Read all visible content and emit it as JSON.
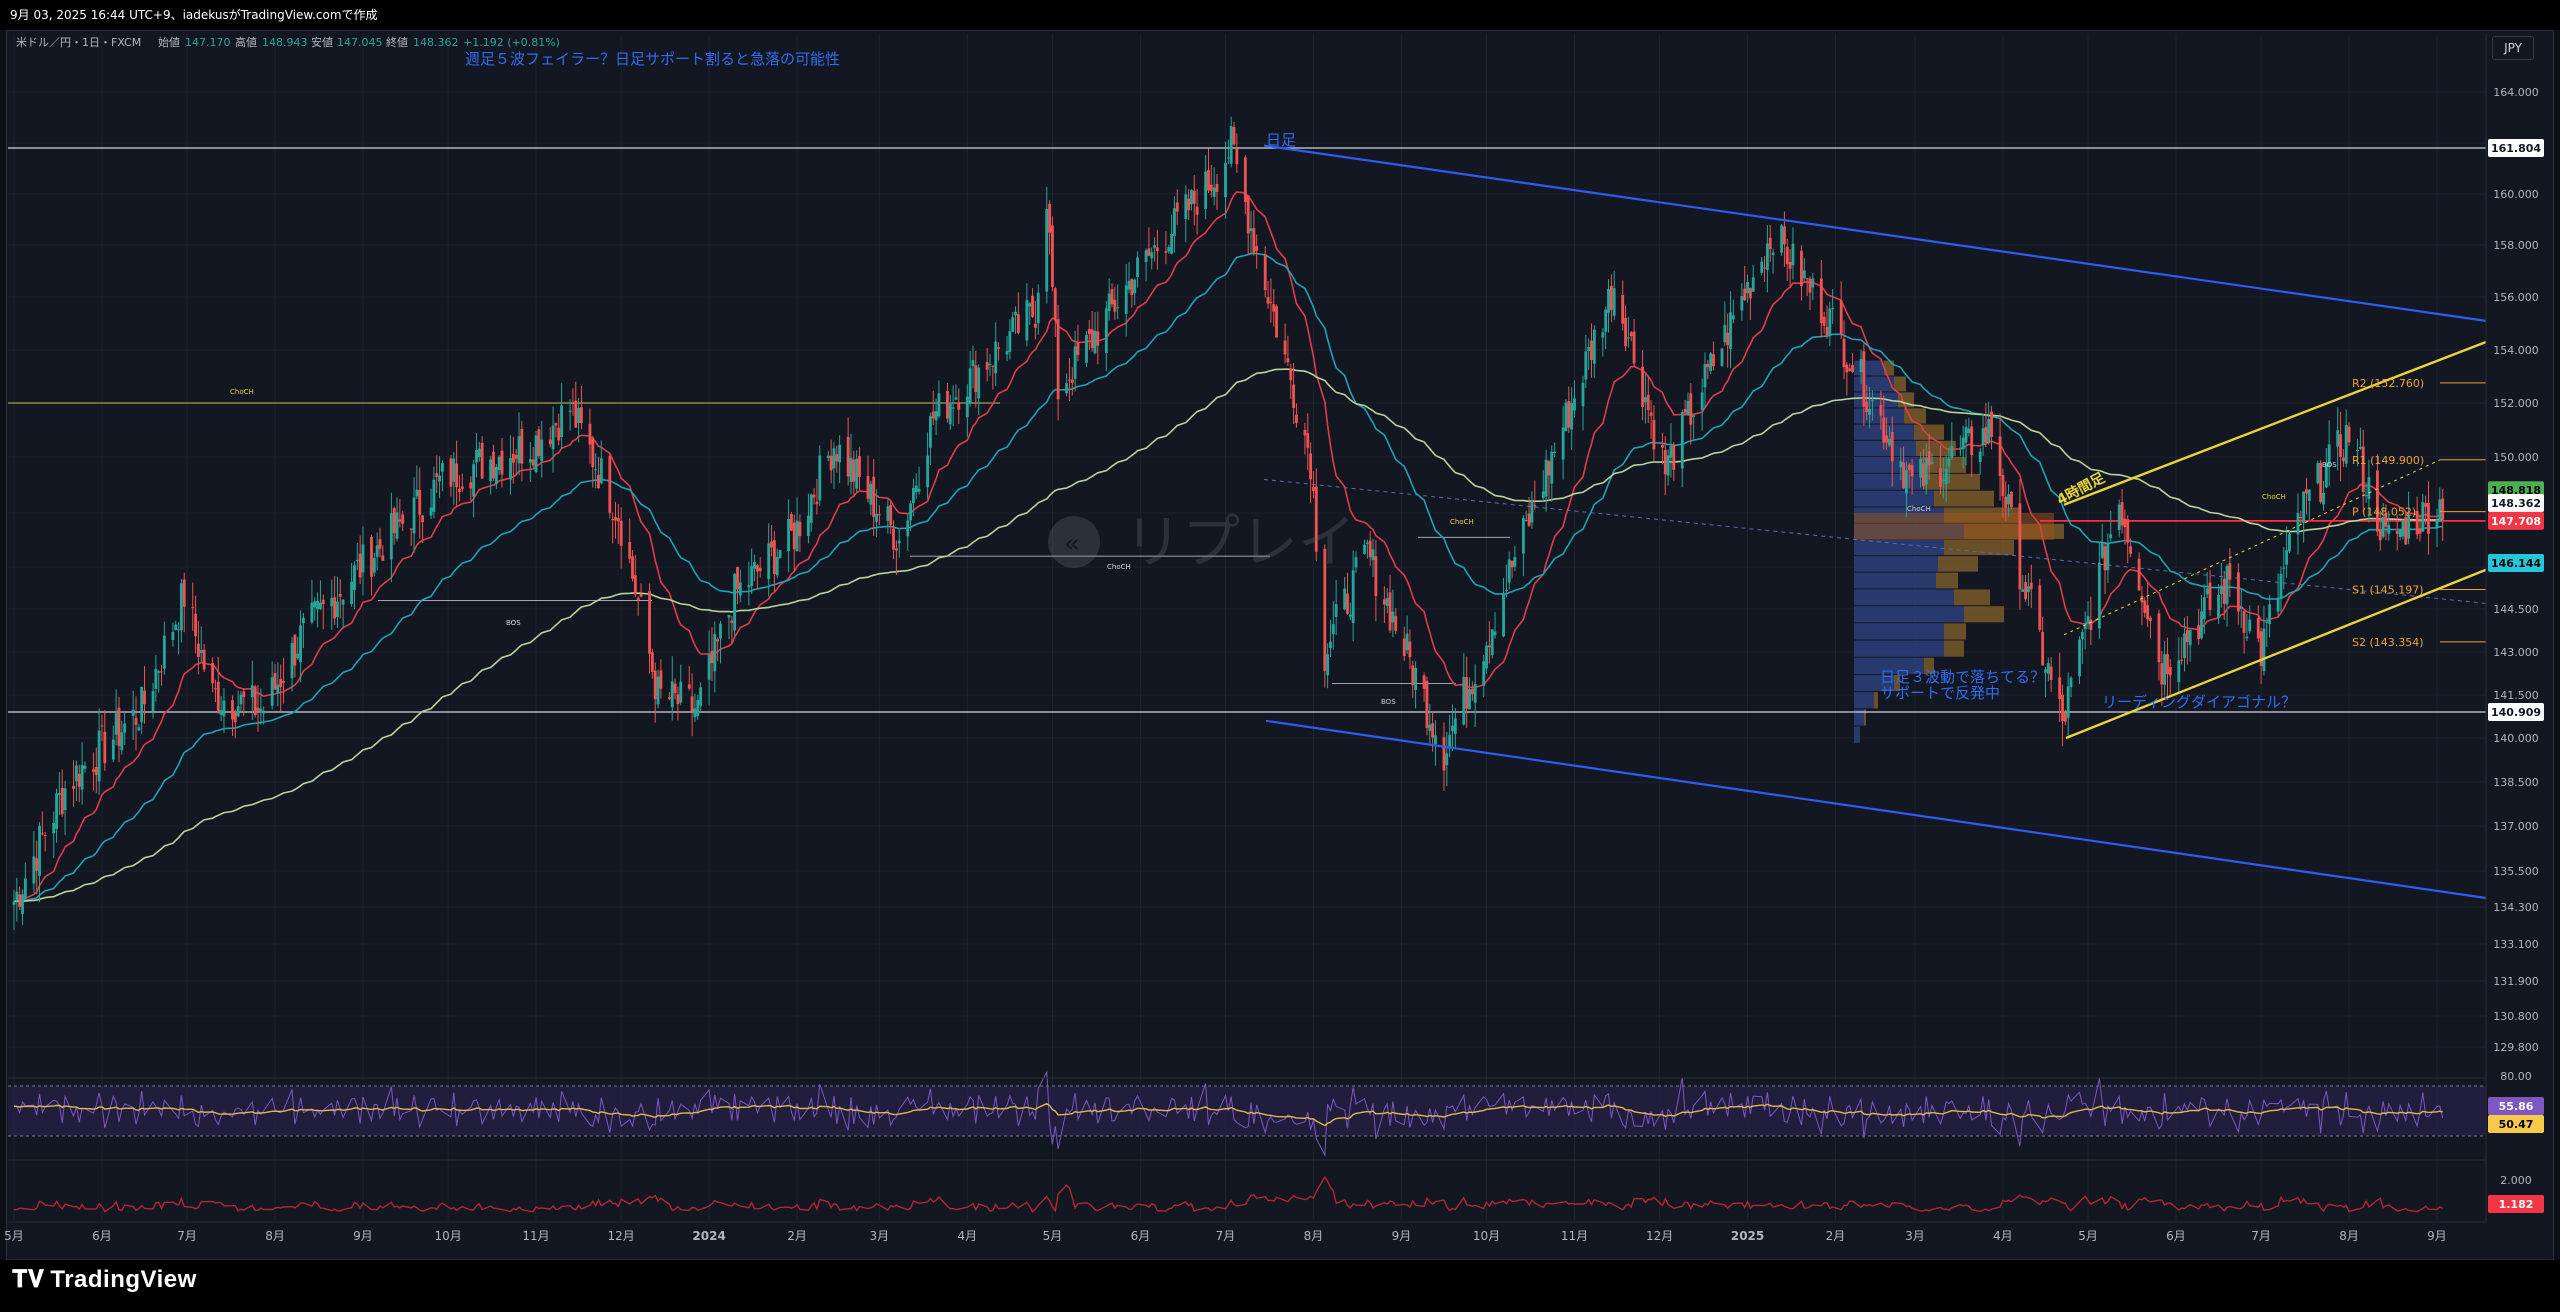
{
  "top_bar": {
    "text": "9月 03, 2025 16:44 UTC+9、iadekusがTradingView.comで作成"
  },
  "currency_button": "JPY",
  "logo": {
    "text": "TradingView"
  },
  "legend": {
    "symbol": "米ドル／円・1日・FXCM",
    "open_label": "始値",
    "open": "147.170",
    "high_label": "高値",
    "high": "148.943",
    "low_label": "安値",
    "low": "147.045",
    "close_label": "終値",
    "close": "148.362",
    "change": "+1.192 (+0.81%)"
  },
  "annotations": {
    "headline": "週足５波フェイラー？日足サポート割ると急落の可能性",
    "daily_label": "日足",
    "h4_label": "4時間足",
    "wave_note_1": "日足３波動で落ちてる？",
    "wave_note_2": "サポートで反発中",
    "diagonal_note": "リーディングダイアゴナル？",
    "choch": "ChoCH",
    "bos": "BOS",
    "watermark": "リプレイ"
  },
  "pivots": [
    {
      "label": "R2 (152.760)",
      "value": 152.76
    },
    {
      "label": "R1 (149.900)",
      "value": 149.9
    },
    {
      "label": "P (148.052)",
      "value": 148.052
    },
    {
      "label": "S1 (145.197)",
      "value": 145.197
    },
    {
      "label": "S2 (143.354)",
      "value": 143.354
    }
  ],
  "price_tags": [
    {
      "text": "161.804",
      "value": 161.804,
      "style": "white"
    },
    {
      "text": "148.818",
      "value": 148.818,
      "style": "green"
    },
    {
      "text": "148.362",
      "value": 148.362,
      "style": "white"
    },
    {
      "text": "147.708",
      "value": 147.708,
      "style": "red"
    },
    {
      "text": "146.144",
      "value": 146.144,
      "style": "cyan"
    },
    {
      "text": "140.909",
      "value": 140.909,
      "style": "white"
    }
  ],
  "oscillator": {
    "ticks": [
      "80.00"
    ],
    "tags": [
      {
        "text": "55.86",
        "style": "purple"
      },
      {
        "text": "50.47",
        "style": "yellow"
      }
    ]
  },
  "lower_pane": {
    "ticks": [
      "2.000"
    ],
    "tags": [
      {
        "text": "1.182",
        "style": "red"
      }
    ]
  },
  "colors": {
    "background": "#131722",
    "grid": "#1e222d",
    "up": "#26a69a",
    "down": "#ef5350",
    "ema_fast": "#e03c4a",
    "ema_mid": "#1fa3b3",
    "ema_slow": "#b9d49b",
    "channel": "#2d5cf0",
    "diagonal": "#e8d53a",
    "pivot": "#f0a035"
  },
  "chart_data": {
    "type": "candlestick",
    "title": "米ドル／円・1日・FXCM",
    "ylim": [
      128.8,
      164.6
    ],
    "y_ticks": [
      "164.000",
      "162.000",
      "160.000",
      "158.000",
      "156.000",
      "154.000",
      "152.000",
      "150.000",
      "148.000",
      "146.000",
      "144.500",
      "143.000",
      "141.500",
      "140.000",
      "138.500",
      "137.000",
      "135.500",
      "134.300",
      "133.100",
      "131.900",
      "130.800",
      "129.800"
    ],
    "x_labels": [
      "5月",
      "6月",
      "7月",
      "8月",
      "9月",
      "10月",
      "11月",
      "12月",
      "2024",
      "2月",
      "3月",
      "4月",
      "5月",
      "6月",
      "7月",
      "8月",
      "9月",
      "10月",
      "11月",
      "12月",
      "2025",
      "2月",
      "3月",
      "4月",
      "5月",
      "6月",
      "7月",
      "8月",
      "9月"
    ],
    "horizontal_levels": [
      161.804,
      140.909,
      152.0
    ],
    "price_path": [
      [
        "2023-05-01",
        134.5
      ],
      [
        "2023-05-20",
        138.5
      ],
      [
        "2023-06-15",
        141.0
      ],
      [
        "2023-06-30",
        145.0
      ],
      [
        "2023-07-10",
        141.5
      ],
      [
        "2023-07-28",
        141.0
      ],
      [
        "2023-08-10",
        143.5
      ],
      [
        "2023-08-31",
        146.0
      ],
      [
        "2023-09-30",
        149.3
      ],
      [
        "2023-10-31",
        150.5
      ],
      [
        "2023-11-13",
        151.8
      ],
      [
        "2023-11-30",
        148.0
      ],
      [
        "2023-12-14",
        141.5
      ],
      [
        "2023-12-28",
        141.0
      ],
      [
        "2024-01-10",
        145.0
      ],
      [
        "2024-01-31",
        147.2
      ],
      [
        "2024-02-14",
        150.5
      ],
      [
        "2024-03-08",
        147.0
      ],
      [
        "2024-03-20",
        151.5
      ],
      [
        "2024-04-25",
        155.5
      ],
      [
        "2024-04-29",
        160.0
      ],
      [
        "2024-05-03",
        152.5
      ],
      [
        "2024-05-31",
        157.0
      ],
      [
        "2024-06-28",
        160.8
      ],
      [
        "2024-07-03",
        161.9
      ],
      [
        "2024-07-12",
        157.8
      ],
      [
        "2024-07-31",
        150.0
      ],
      [
        "2024-08-05",
        143.0
      ],
      [
        "2024-08-20",
        146.5
      ],
      [
        "2024-09-16",
        139.6
      ],
      [
        "2024-10-01",
        143.5
      ],
      [
        "2024-10-31",
        152.0
      ],
      [
        "2024-11-15",
        156.5
      ],
      [
        "2024-12-03",
        149.5
      ],
      [
        "2025-01-10",
        158.5
      ],
      [
        "2025-01-31",
        155.0
      ],
      [
        "2025-02-28",
        149.0
      ],
      [
        "2025-03-28",
        151.0
      ],
      [
        "2025-04-08",
        145.5
      ],
      [
        "2025-04-22",
        140.5
      ],
      [
        "2025-05-12",
        148.5
      ],
      [
        "2025-05-27",
        142.5
      ],
      [
        "2025-06-20",
        145.5
      ],
      [
        "2025-07-01",
        143.0
      ],
      [
        "2025-07-15",
        148.0
      ],
      [
        "2025-08-01",
        150.9
      ],
      [
        "2025-08-14",
        147.0
      ],
      [
        "2025-09-03",
        148.36
      ]
    ]
  }
}
